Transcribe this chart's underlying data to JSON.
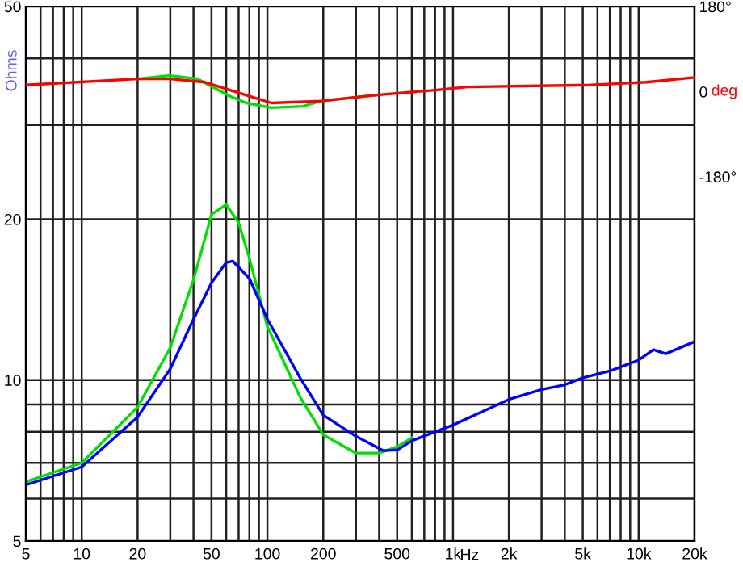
{
  "chart_data": {
    "type": "line",
    "xlabel": "Hz",
    "ylabel": "Ohms",
    "y2label": "deg",
    "log": "xy",
    "grid": true,
    "legend": false,
    "marker": "none",
    "line_style": "solid",
    "xlim": [
      5,
      20000
    ],
    "xticks": [
      5,
      {
        "value": 6,
        "label": null
      },
      {
        "value": 7,
        "label": null
      },
      {
        "value": 8,
        "label": null
      },
      {
        "value": 9,
        "label": null
      },
      10,
      20,
      {
        "value": 30,
        "label": null
      },
      {
        "value": 40,
        "label": null
      },
      50,
      {
        "value": 60,
        "label": null
      },
      {
        "value": 70,
        "label": null
      },
      {
        "value": 80,
        "label": null
      },
      {
        "value": 90,
        "label": null
      },
      100,
      200,
      {
        "value": 300,
        "label": null
      },
      {
        "value": 400,
        "label": null
      },
      500,
      {
        "value": 600,
        "label": null
      },
      {
        "value": 700,
        "label": null
      },
      {
        "value": 800,
        "label": null
      },
      {
        "value": 900,
        "label": null
      },
      {
        "value": 1000,
        "label": "1k"
      },
      {
        "value": 2000,
        "label": "2k"
      },
      {
        "value": 3000,
        "label": null
      },
      {
        "value": 4000,
        "label": null
      },
      {
        "value": 5000,
        "label": "5k"
      },
      {
        "value": 6000,
        "label": null
      },
      {
        "value": 7000,
        "label": null
      },
      {
        "value": 8000,
        "label": null
      },
      {
        "value": 9000,
        "label": null
      },
      {
        "value": 10000,
        "label": "10k"
      },
      {
        "value": 20000,
        "label": "20k"
      }
    ],
    "ylim": [
      5,
      50
    ],
    "yticks": [
      5,
      {
        "value": 6,
        "label": null
      },
      {
        "value": 7,
        "label": null
      },
      {
        "value": 8,
        "label": null
      },
      {
        "value": 9,
        "label": null
      },
      10,
      20,
      {
        "value": 30,
        "label": null
      },
      {
        "value": 40,
        "label": null
      },
      50
    ],
    "y2lim": [
      -950,
      180
    ],
    "y2ticks": [
      {
        "value": 180,
        "label": "180°"
      },
      0,
      {
        "value": -180,
        "label": "-180°"
      }
    ],
    "series": [
      {
        "color": "#00e000",
        "x": [
          5,
          10,
          20,
          30,
          40,
          50,
          60,
          70,
          80,
          100,
          150,
          200,
          300,
          400,
          500,
          600
        ],
        "values": [
          6.45,
          7.0,
          8.9,
          11.5,
          15.4,
          20.4,
          21.3,
          19.7,
          16.9,
          12.6,
          9.3,
          7.9,
          7.3,
          7.3,
          7.5,
          7.8
        ]
      },
      {
        "color": "#0000ff",
        "x": [
          5,
          10,
          20,
          30,
          40,
          50,
          60,
          65,
          80,
          100,
          150,
          200,
          300,
          420,
          500,
          600,
          1000,
          2000,
          3000,
          4000,
          5000,
          7000,
          10000,
          12000,
          14000,
          20000
        ],
        "values": [
          6.37,
          6.88,
          8.53,
          10.5,
          13.0,
          15.2,
          16.6,
          16.7,
          15.5,
          13.0,
          10.1,
          8.6,
          7.85,
          7.38,
          7.4,
          7.7,
          8.24,
          9.2,
          9.6,
          9.8,
          10.1,
          10.4,
          10.9,
          11.4,
          11.2,
          11.8
        ]
      },
      {
        "color": "#00e000",
        "axis": "y2",
        "x": [
          20,
          30,
          42,
          63,
          77,
          105,
          155,
          194,
          390
        ],
        "values": [
          27,
          34,
          27,
          -10,
          -24,
          -34,
          -31,
          -20,
          -7
        ]
      },
      {
        "color": "#ff0000",
        "axis": "y2",
        "x": [
          5,
          20,
          30,
          46,
          63,
          105,
          194,
          390,
          800,
          1200,
          5500,
          11000,
          20000
        ],
        "values": [
          14,
          27,
          27,
          20,
          3,
          -24,
          -20,
          -7,
          3,
          10,
          14,
          20,
          30
        ]
      }
    ]
  }
}
